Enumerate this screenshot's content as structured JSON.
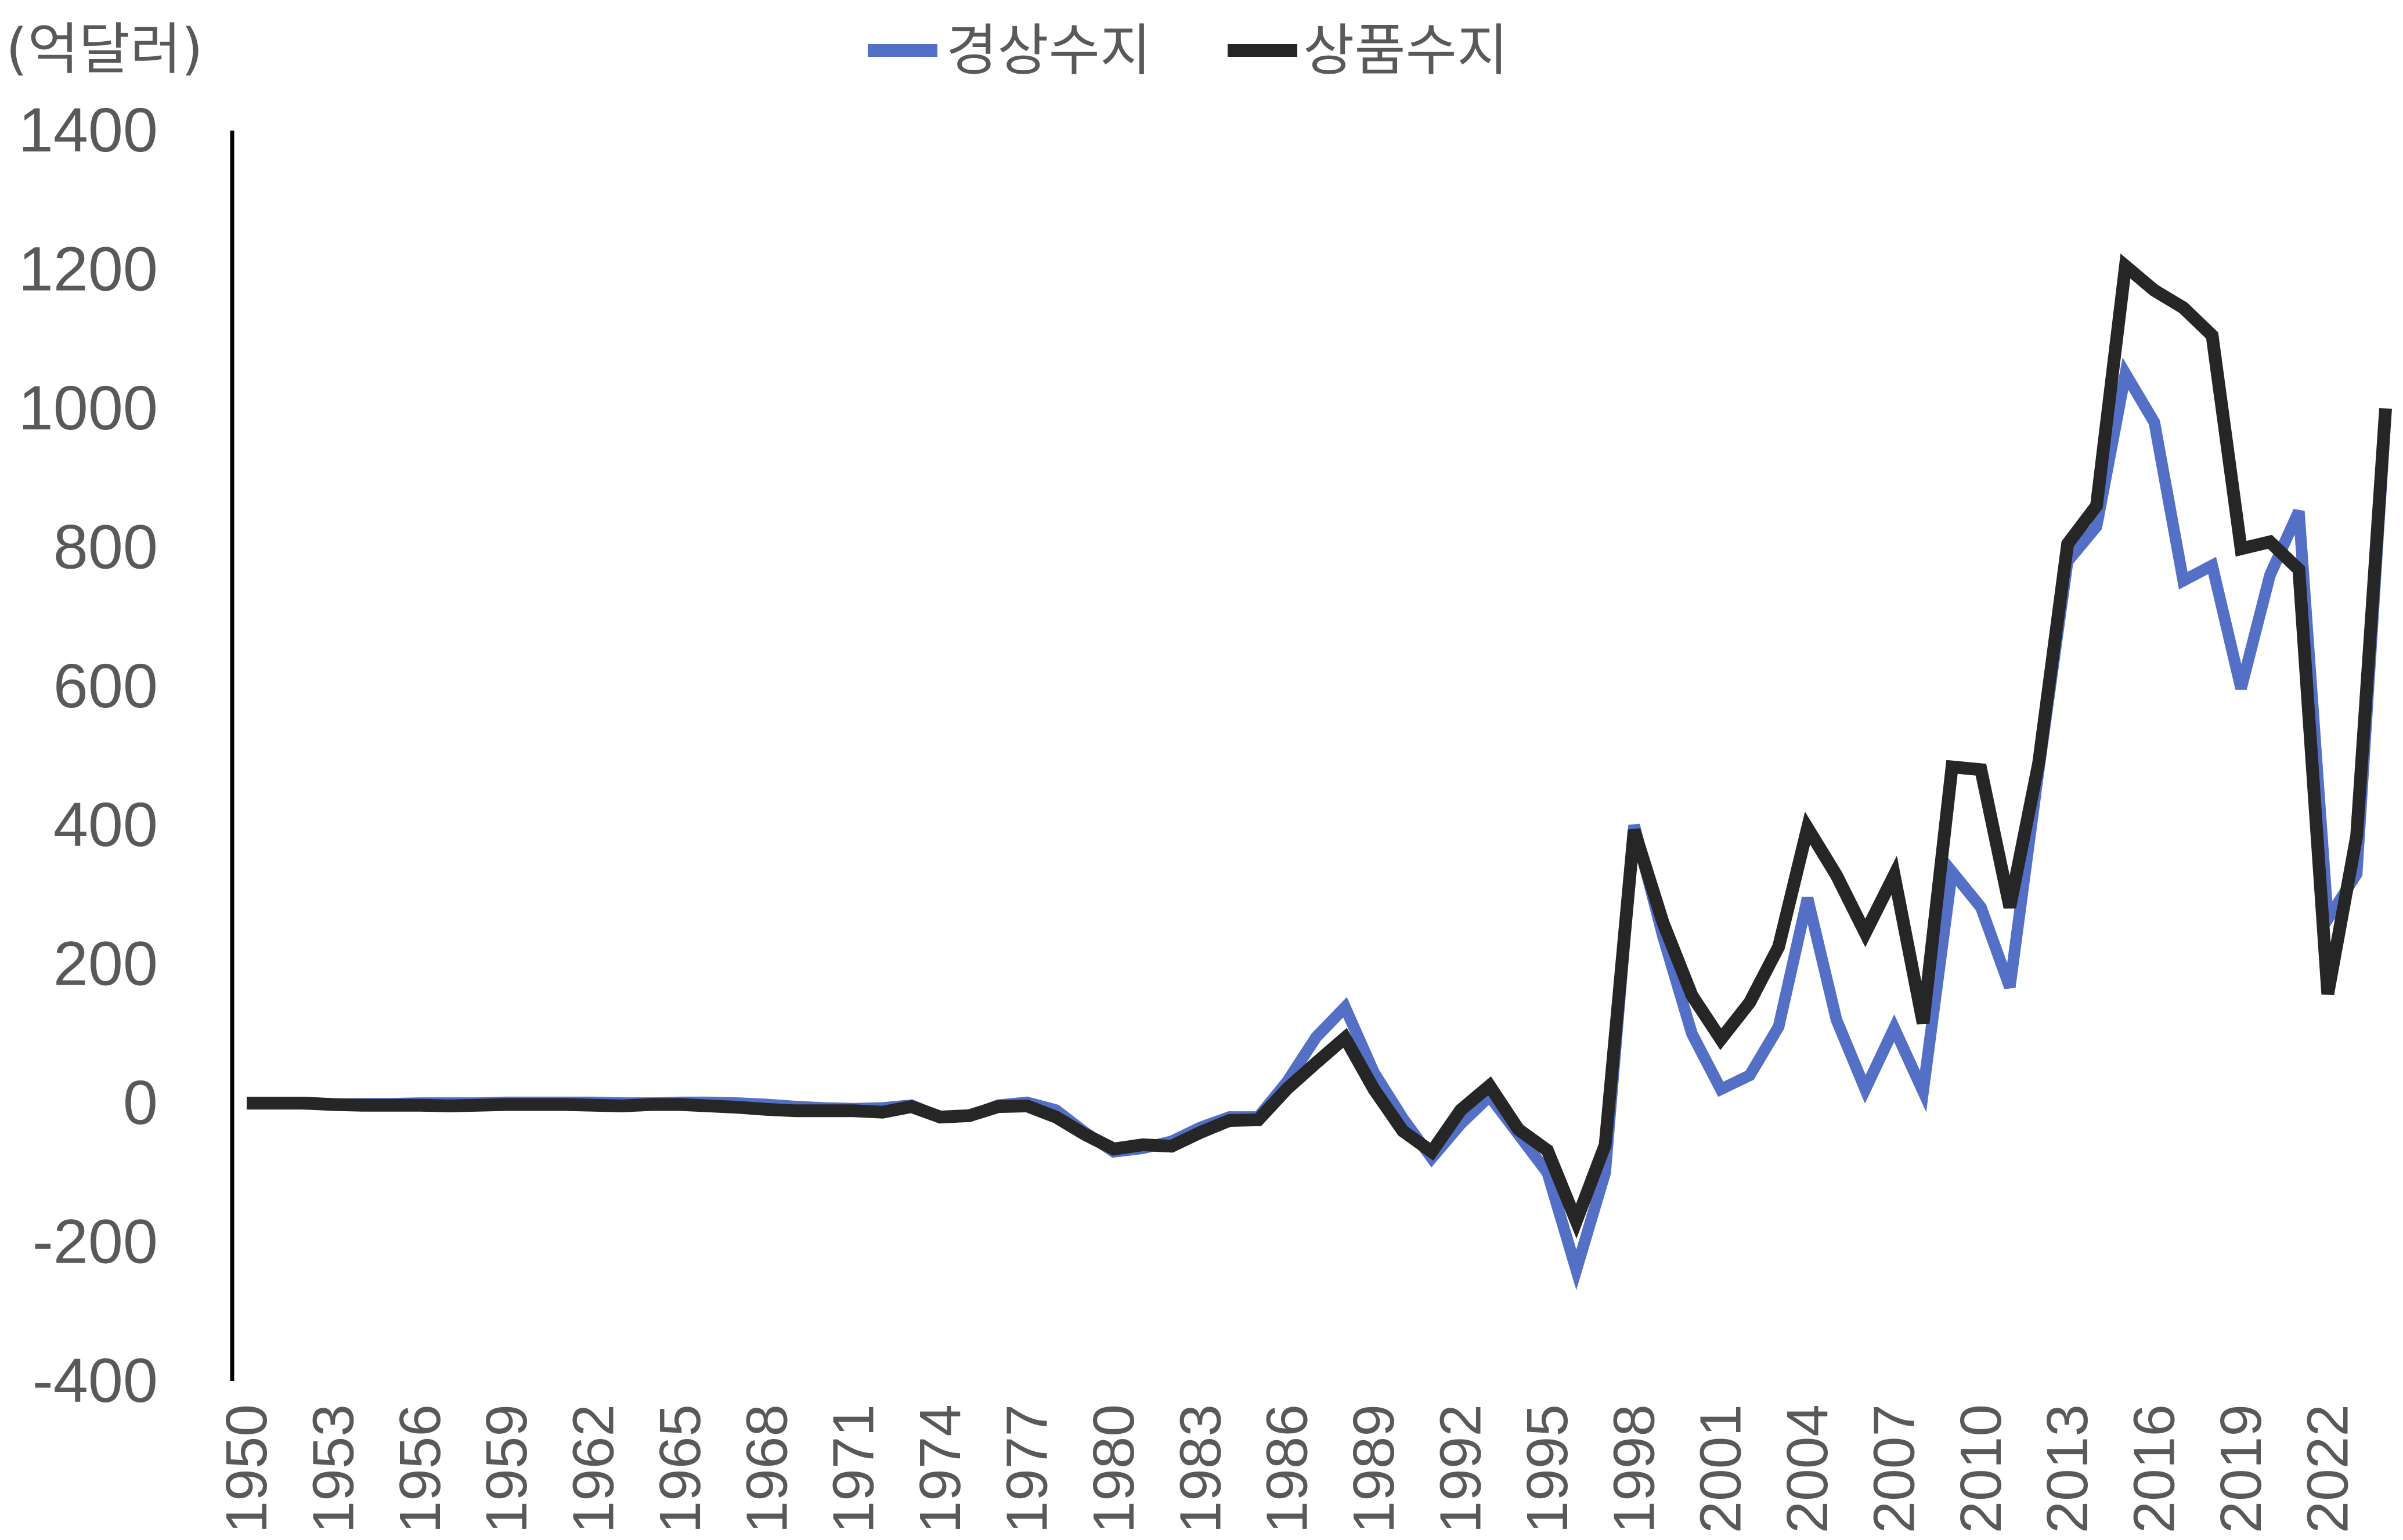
{
  "chart_data": {
    "type": "line",
    "ylabel": "(억달러)",
    "ylim": [
      -400,
      1400
    ],
    "yticks": [
      -400,
      -200,
      0,
      200,
      400,
      600,
      800,
      1000,
      1200,
      1400
    ],
    "ytick_labels": [
      "-400",
      "-200",
      "0",
      "200",
      "400",
      "600",
      "800",
      "1000",
      "1200",
      "1400"
    ],
    "xtick_labels": [
      "1950",
      "1953",
      "1956",
      "1959",
      "1962",
      "1965",
      "1968",
      "1971",
      "1974",
      "1977",
      "1980",
      "1983",
      "1986",
      "1989",
      "1992",
      "1995",
      "1998",
      "2001",
      "2004",
      "2007",
      "2010",
      "2013",
      "2016",
      "2019",
      "2022"
    ],
    "legend_position": "top",
    "grid": false,
    "x": [
      1950,
      1951,
      1952,
      1953,
      1954,
      1955,
      1956,
      1957,
      1958,
      1959,
      1960,
      1961,
      1962,
      1963,
      1964,
      1965,
      1966,
      1967,
      1968,
      1969,
      1970,
      1971,
      1972,
      1973,
      1974,
      1975,
      1976,
      1977,
      1978,
      1979,
      1980,
      1981,
      1982,
      1983,
      1984,
      1985,
      1986,
      1987,
      1988,
      1989,
      1990,
      1991,
      1992,
      1993,
      1994,
      1995,
      1996,
      1997,
      1998,
      1999,
      2000,
      2001,
      2002,
      2003,
      2004,
      2005,
      2006,
      2007,
      2008,
      2009,
      2010,
      2011,
      2012,
      2013,
      2014,
      2015,
      2016,
      2017,
      2018,
      2019,
      2020,
      2021,
      2022,
      2023,
      2024
    ],
    "series": [
      {
        "name": "경상수지",
        "color": "#5470C6",
        "values": [
          0,
          0,
          -1,
          -2,
          -1,
          -1,
          0,
          0,
          0,
          1,
          1,
          1,
          1,
          0,
          0,
          1,
          1,
          0,
          -2,
          -5,
          -7,
          -8,
          -7,
          -3,
          -20,
          -19,
          -3,
          1,
          -10,
          -42,
          -70,
          -65,
          -55,
          -35,
          -20,
          -20,
          31,
          95,
          138,
          44,
          -22,
          -79,
          -30,
          10,
          -45,
          -100,
          -240,
          -100,
          400,
          240,
          100,
          20,
          40,
          110,
          295,
          120,
          20,
          108,
          17,
          333,
          282,
          167,
          480,
          780,
          830,
          1050,
          980,
          752,
          774,
          597,
          760,
          852,
          265,
          330,
          990
        ]
      },
      {
        "name": "상품수지",
        "color": "#262626",
        "values": [
          0,
          0,
          0,
          -2,
          -3,
          -3,
          -3,
          -4,
          -3,
          -2,
          -2,
          -2,
          -3,
          -4,
          -2,
          -2,
          -4,
          -6,
          -9,
          -11,
          -11,
          -11,
          -13,
          -5,
          -20,
          -18,
          -5,
          -4,
          -20,
          -45,
          -66,
          -60,
          -62,
          -42,
          -25,
          -24,
          21,
          58,
          94,
          20,
          -40,
          -70,
          -10,
          25,
          -38,
          -68,
          -170,
          -60,
          393,
          260,
          155,
          92,
          145,
          225,
          396,
          328,
          245,
          328,
          115,
          484,
          480,
          282,
          490,
          805,
          860,
          1205,
          1170,
          1145,
          1105,
          798,
          808,
          768,
          157,
          385,
          1000
        ]
      }
    ]
  }
}
